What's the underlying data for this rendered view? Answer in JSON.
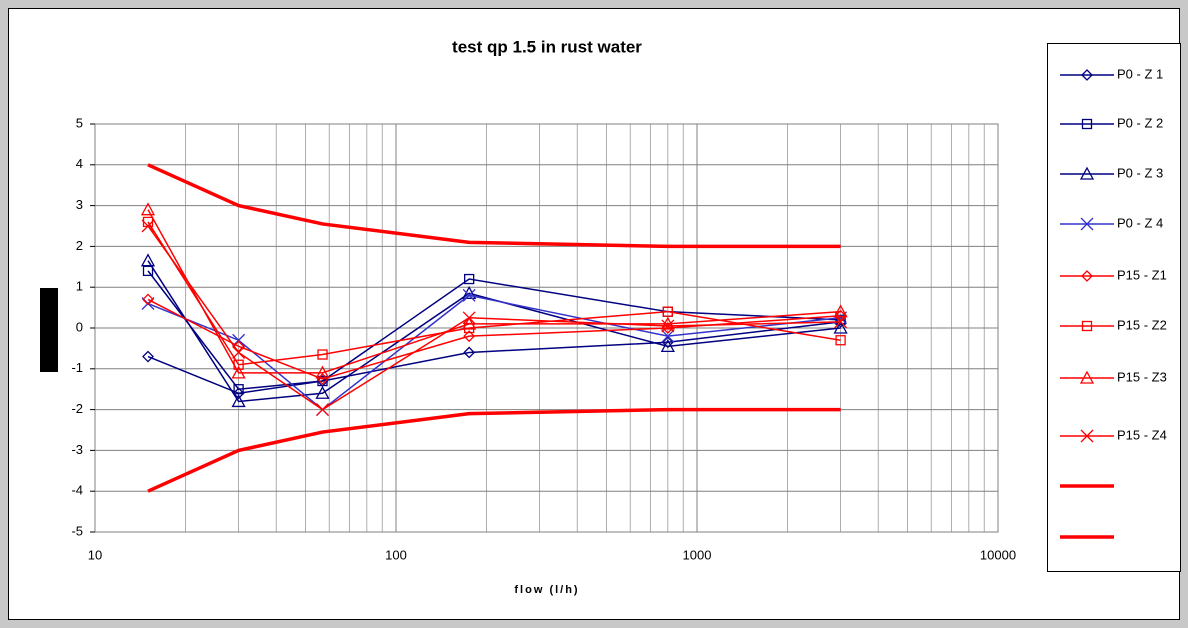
{
  "chart_data": {
    "type": "line",
    "title": "test qp 1.5  in rust  water",
    "x_label": "flow (l/h)",
    "x": [
      15,
      30,
      57,
      175,
      800,
      3000
    ],
    "xscale": "log",
    "xlim": [
      10,
      10000
    ],
    "xticks": [
      10,
      100,
      1000,
      10000
    ],
    "xminorticks": [
      20,
      30,
      40,
      50,
      60,
      70,
      80,
      90,
      200,
      300,
      400,
      500,
      600,
      700,
      800,
      900,
      2000,
      3000,
      4000,
      5000,
      6000,
      7000,
      8000,
      9000
    ],
    "ylim": [
      -5,
      5
    ],
    "yticks": [
      -5,
      -4,
      -3,
      -2,
      -1,
      0,
      1,
      2,
      3,
      4,
      5
    ],
    "grid": true,
    "legend": "right",
    "series": [
      {
        "name": "P0 -  Z 1",
        "color": "#000080",
        "marker": "diamond",
        "width": 1.5,
        "values": [
          -0.7,
          -1.6,
          -1.3,
          -0.6,
          -0.35,
          0.15
        ]
      },
      {
        "name": "P0 -  Z 2",
        "color": "#000080",
        "marker": "square",
        "width": 1.5,
        "values": [
          1.4,
          -1.5,
          -1.3,
          1.2,
          0.4,
          0.2
        ]
      },
      {
        "name": "P0 -  Z 3",
        "color": "#000080",
        "marker": "triangle",
        "width": 1.5,
        "values": [
          1.65,
          -1.8,
          -1.6,
          0.85,
          -0.45,
          0.0
        ]
      },
      {
        "name": "P0 -  Z 4",
        "color": "#3333cc",
        "marker": "x",
        "width": 1.5,
        "values": [
          0.6,
          -0.3,
          -2.0,
          0.8,
          -0.2,
          0.25
        ]
      },
      {
        "name": "P15 - Z1",
        "color": "#ff0000",
        "marker": "diamond",
        "width": 1.5,
        "values": [
          0.7,
          -0.45,
          -1.25,
          -0.2,
          0.0,
          0.3
        ]
      },
      {
        "name": "P15 - Z2",
        "color": "#ff0000",
        "marker": "square",
        "width": 1.5,
        "values": [
          2.6,
          -0.9,
          -0.65,
          0.0,
          0.4,
          -0.3
        ]
      },
      {
        "name": "P15 - Z3",
        "color": "#ff0000",
        "marker": "triangle",
        "width": 1.5,
        "values": [
          2.9,
          -1.1,
          -1.1,
          0.1,
          0.1,
          0.4
        ]
      },
      {
        "name": "P15 - Z4",
        "color": "#ff0000",
        "marker": "x",
        "width": 1.5,
        "values": [
          2.5,
          -0.6,
          -2.0,
          0.25,
          0.05,
          0.15
        ]
      },
      {
        "color": "#ff0000",
        "width": 3.5,
        "values": [
          4,
          3,
          2.55,
          2.1,
          2.0,
          2.0
        ]
      },
      {
        "color": "#ff0000",
        "width": 3.5,
        "values": [
          -4,
          -3,
          -2.55,
          -2.1,
          -2.0,
          -2.0
        ]
      }
    ]
  }
}
